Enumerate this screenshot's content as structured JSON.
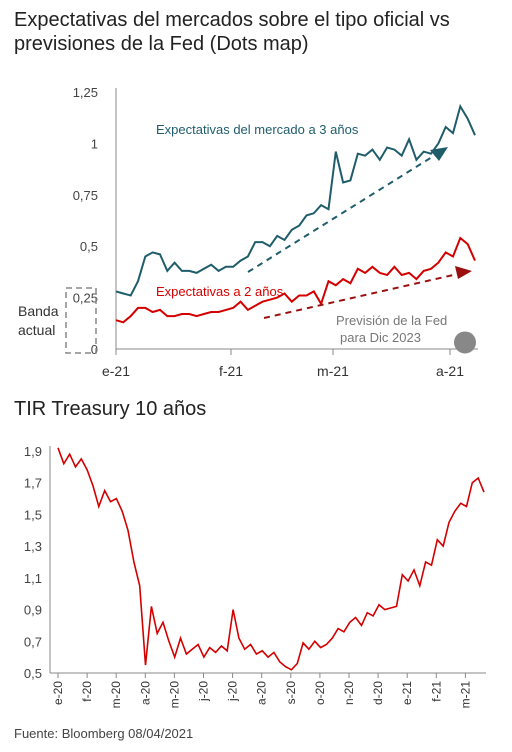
{
  "header": {
    "title": "Expectativas del mercados sobre el tipo oficial vs previsiones de la Fed (Dots map)",
    "title2": "TIR Treasury 10 años",
    "source": "Fuente: Bloomberg 08/04/2021"
  },
  "colors": {
    "teal": "#1f5d6b",
    "red": "#d40000",
    "dark_red": "#9a1010",
    "gray": "#888888",
    "axis": "#888888"
  },
  "chart_data": [
    {
      "type": "line",
      "title": "Expectativas del mercados sobre el tipo oficial vs previsiones de la Fed (Dots map)",
      "ylim": [
        0,
        1.25
      ],
      "yticks": [
        "0",
        "0,25",
        "0,5",
        "0,75",
        "1",
        "1,25"
      ],
      "xticks": [
        "e-21",
        "f-21",
        "m-21",
        "a-21"
      ],
      "series": [
        {
          "name": "Expectativas del mercado  a 3 años",
          "x": [
            0,
            2,
            4,
            6,
            8,
            10,
            12,
            14,
            16,
            18,
            20,
            22,
            24,
            26,
            28,
            30,
            32,
            34,
            36,
            38,
            40,
            42,
            44,
            46,
            48,
            50,
            52,
            54,
            56,
            58,
            60,
            62,
            64,
            66,
            68,
            70,
            72,
            74,
            76,
            78,
            80,
            82,
            84,
            86,
            88,
            90,
            92,
            94,
            96,
            98
          ],
          "values": [
            0.28,
            0.27,
            0.26,
            0.33,
            0.45,
            0.47,
            0.46,
            0.38,
            0.42,
            0.38,
            0.38,
            0.37,
            0.39,
            0.41,
            0.38,
            0.4,
            0.4,
            0.43,
            0.45,
            0.52,
            0.52,
            0.5,
            0.55,
            0.53,
            0.58,
            0.6,
            0.65,
            0.66,
            0.7,
            0.68,
            0.96,
            0.81,
            0.82,
            0.95,
            0.94,
            0.97,
            0.92,
            0.98,
            0.97,
            0.94,
            1.02,
            0.92,
            0.96,
            0.95,
            1.0,
            1.08,
            1.05,
            1.18,
            1.12,
            1.04
          ]
        },
        {
          "name": "Expectativas a 2 años",
          "x": [
            0,
            2,
            4,
            6,
            8,
            10,
            12,
            14,
            16,
            18,
            20,
            22,
            24,
            26,
            28,
            30,
            32,
            34,
            36,
            38,
            40,
            42,
            44,
            46,
            48,
            50,
            52,
            54,
            56,
            58,
            60,
            62,
            64,
            66,
            68,
            70,
            72,
            74,
            76,
            78,
            80,
            82,
            84,
            86,
            88,
            90,
            92,
            94,
            96,
            98
          ],
          "values": [
            0.14,
            0.13,
            0.16,
            0.2,
            0.2,
            0.18,
            0.19,
            0.16,
            0.16,
            0.17,
            0.17,
            0.16,
            0.17,
            0.18,
            0.18,
            0.19,
            0.2,
            0.23,
            0.19,
            0.21,
            0.23,
            0.24,
            0.25,
            0.27,
            0.23,
            0.26,
            0.26,
            0.28,
            0.22,
            0.33,
            0.31,
            0.34,
            0.32,
            0.39,
            0.37,
            0.4,
            0.37,
            0.36,
            0.4,
            0.36,
            0.37,
            0.34,
            0.38,
            0.39,
            0.42,
            0.47,
            0.45,
            0.54,
            0.51,
            0.43
          ]
        }
      ],
      "labels": {
        "series3": "Expectativas del mercado  a 3 años",
        "series2": "Expectativas a 2 años",
        "band_line1": "Banda",
        "band_line2": "actual",
        "prevision_line1": "Previsión de la Fed",
        "prevision_line2": "para Dic 2023"
      },
      "band": [
        0,
        0.25
      ],
      "fed_projection": 0.1
    },
    {
      "type": "line",
      "title": "TIR Treasury 10 años",
      "ylim": [
        0.5,
        1.9
      ],
      "yticks": [
        "1,9",
        "1,7",
        "1,5",
        "1,3",
        "1,1",
        "0,9",
        "0,7",
        "0,5"
      ],
      "xticks": [
        "e-20",
        "f-20",
        "m-20",
        "a-20",
        "m-20",
        "j-20",
        "j-20",
        "a-20",
        "s-20",
        "o-20",
        "n-20",
        "d-20",
        "e-21",
        "f-21",
        "m-21"
      ],
      "series": [
        {
          "name": "TIR Treasury 10 años",
          "x": [
            0,
            0.2,
            0.4,
            0.6,
            0.8,
            1.0,
            1.2,
            1.4,
            1.6,
            1.8,
            2.0,
            2.2,
            2.4,
            2.6,
            2.8,
            3.0,
            3.2,
            3.4,
            3.6,
            3.8,
            4.0,
            4.2,
            4.4,
            4.6,
            4.8,
            5.0,
            5.2,
            5.4,
            5.6,
            5.8,
            6.0,
            6.2,
            6.4,
            6.6,
            6.8,
            7.0,
            7.2,
            7.4,
            7.6,
            7.8,
            8.0,
            8.2,
            8.4,
            8.6,
            8.8,
            9.0,
            9.2,
            9.4,
            9.6,
            9.8,
            10.0,
            10.2,
            10.4,
            10.6,
            10.8,
            11.0,
            11.2,
            11.4,
            11.6,
            11.8,
            12.0,
            12.2,
            12.4,
            12.6,
            12.8,
            13.0,
            13.2,
            13.4,
            13.6,
            13.8,
            14.0,
            14.2,
            14.4,
            14.6
          ],
          "values": [
            1.92,
            1.82,
            1.88,
            1.8,
            1.85,
            1.78,
            1.68,
            1.55,
            1.65,
            1.58,
            1.6,
            1.52,
            1.4,
            1.2,
            1.05,
            0.55,
            0.92,
            0.75,
            0.82,
            0.7,
            0.6,
            0.72,
            0.62,
            0.65,
            0.68,
            0.6,
            0.66,
            0.63,
            0.67,
            0.64,
            0.9,
            0.72,
            0.65,
            0.68,
            0.62,
            0.64,
            0.6,
            0.63,
            0.57,
            0.54,
            0.52,
            0.56,
            0.69,
            0.65,
            0.7,
            0.66,
            0.68,
            0.72,
            0.78,
            0.76,
            0.82,
            0.85,
            0.8,
            0.88,
            0.86,
            0.93,
            0.9,
            0.91,
            0.92,
            1.12,
            1.08,
            1.15,
            1.05,
            1.2,
            1.18,
            1.34,
            1.3,
            1.45,
            1.52,
            1.57,
            1.55,
            1.7,
            1.73,
            1.64
          ]
        }
      ]
    }
  ]
}
